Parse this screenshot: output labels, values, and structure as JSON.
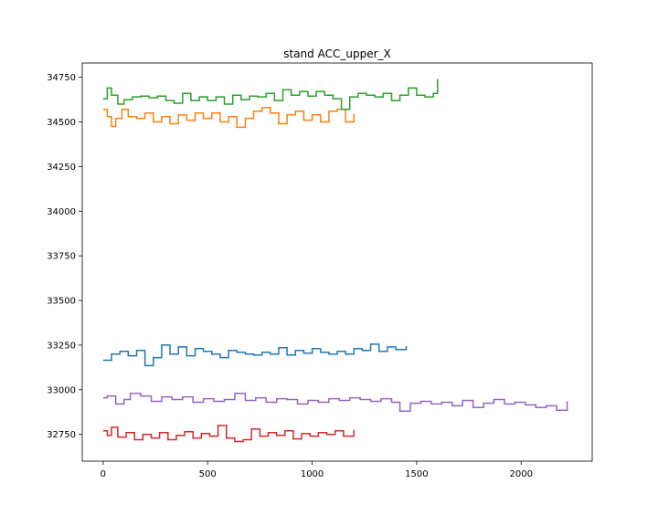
{
  "chart_data": {
    "type": "line",
    "title": "stand ACC_upper_X",
    "xlabel": "",
    "ylabel": "",
    "xlim": [
      -100,
      2340
    ],
    "ylim": [
      32600,
      34830
    ],
    "xticks": [
      0,
      500,
      1000,
      1500,
      2000
    ],
    "yticks": [
      32750,
      33000,
      33250,
      33500,
      33750,
      34000,
      34250,
      34500,
      34750
    ],
    "grid": false,
    "legend": "none",
    "line_style": "steps",
    "series": [
      {
        "color": "#1f77b4",
        "x": [
          0,
          40,
          80,
          120,
          160,
          200,
          240,
          280,
          320,
          360,
          400,
          440,
          480,
          520,
          560,
          600,
          640,
          680,
          720,
          760,
          800,
          840,
          880,
          920,
          960,
          1000,
          1040,
          1080,
          1120,
          1160,
          1200,
          1240,
          1280,
          1320,
          1360,
          1400,
          1450
        ],
        "values": [
          33165,
          33200,
          33215,
          33190,
          33220,
          33135,
          33180,
          33250,
          33200,
          33240,
          33190,
          33230,
          33215,
          33200,
          33180,
          33220,
          33210,
          33200,
          33195,
          33210,
          33200,
          33235,
          33195,
          33220,
          33205,
          33230,
          33210,
          33200,
          33215,
          33200,
          33230,
          33220,
          33255,
          33215,
          33240,
          33225,
          33245
        ]
      },
      {
        "color": "#ff7f0e",
        "x": [
          0,
          20,
          40,
          60,
          90,
          120,
          160,
          200,
          240,
          280,
          320,
          360,
          400,
          440,
          480,
          520,
          560,
          600,
          640,
          680,
          720,
          760,
          800,
          840,
          880,
          920,
          960,
          1000,
          1040,
          1080,
          1120,
          1160,
          1200
        ],
        "values": [
          34570,
          34530,
          34475,
          34520,
          34570,
          34530,
          34520,
          34550,
          34500,
          34530,
          34490,
          34540,
          34510,
          34550,
          34520,
          34550,
          34500,
          34530,
          34470,
          34520,
          34560,
          34580,
          34550,
          34490,
          34540,
          34560,
          34510,
          34540,
          34500,
          34560,
          34570,
          34500,
          34545
        ]
      },
      {
        "color": "#2ca02c",
        "x": [
          0,
          20,
          40,
          70,
          100,
          140,
          180,
          220,
          260,
          300,
          340,
          380,
          420,
          460,
          500,
          540,
          580,
          620,
          660,
          700,
          740,
          780,
          820,
          860,
          900,
          940,
          980,
          1020,
          1060,
          1100,
          1140,
          1180,
          1220,
          1260,
          1300,
          1340,
          1380,
          1420,
          1460,
          1500,
          1540,
          1580,
          1600
        ],
        "values": [
          34630,
          34690,
          34650,
          34600,
          34625,
          34640,
          34645,
          34635,
          34645,
          34620,
          34605,
          34660,
          34620,
          34640,
          34620,
          34640,
          34600,
          34650,
          34625,
          34645,
          34640,
          34660,
          34620,
          34680,
          34650,
          34670,
          34645,
          34670,
          34650,
          34630,
          34570,
          34640,
          34660,
          34650,
          34640,
          34660,
          34620,
          34650,
          34690,
          34650,
          34640,
          34660,
          34740
        ]
      },
      {
        "color": "#d62728",
        "x": [
          0,
          20,
          40,
          70,
          110,
          150,
          190,
          230,
          270,
          310,
          350,
          390,
          430,
          470,
          510,
          550,
          590,
          630,
          670,
          710,
          750,
          790,
          830,
          870,
          910,
          950,
          990,
          1030,
          1070,
          1110,
          1150,
          1200
        ],
        "values": [
          32770,
          32745,
          32790,
          32735,
          32760,
          32720,
          32750,
          32730,
          32760,
          32720,
          32745,
          32765,
          32730,
          32755,
          32740,
          32800,
          32730,
          32710,
          32720,
          32780,
          32740,
          32760,
          32745,
          32770,
          32725,
          32755,
          32740,
          32760,
          32750,
          32770,
          32740,
          32775
        ]
      },
      {
        "color": "#9467bd",
        "x": [
          0,
          20,
          60,
          100,
          130,
          180,
          230,
          280,
          330,
          380,
          430,
          480,
          530,
          580,
          630,
          680,
          730,
          780,
          830,
          880,
          930,
          980,
          1030,
          1080,
          1130,
          1180,
          1230,
          1280,
          1330,
          1380,
          1420,
          1470,
          1520,
          1570,
          1620,
          1670,
          1720,
          1770,
          1820,
          1870,
          1920,
          1970,
          2020,
          2070,
          2120,
          2170,
          2220
        ],
        "values": [
          32955,
          32965,
          32920,
          32945,
          32980,
          32965,
          32935,
          32960,
          32945,
          32960,
          32930,
          32950,
          32935,
          32945,
          32980,
          32940,
          32955,
          32930,
          32950,
          32945,
          32920,
          32940,
          32930,
          32950,
          32940,
          32955,
          32945,
          32935,
          32950,
          32930,
          32880,
          32925,
          32935,
          32920,
          32930,
          32910,
          32940,
          32900,
          32925,
          32945,
          32920,
          32930,
          32915,
          32900,
          32910,
          32885,
          32935
        ]
      }
    ]
  }
}
